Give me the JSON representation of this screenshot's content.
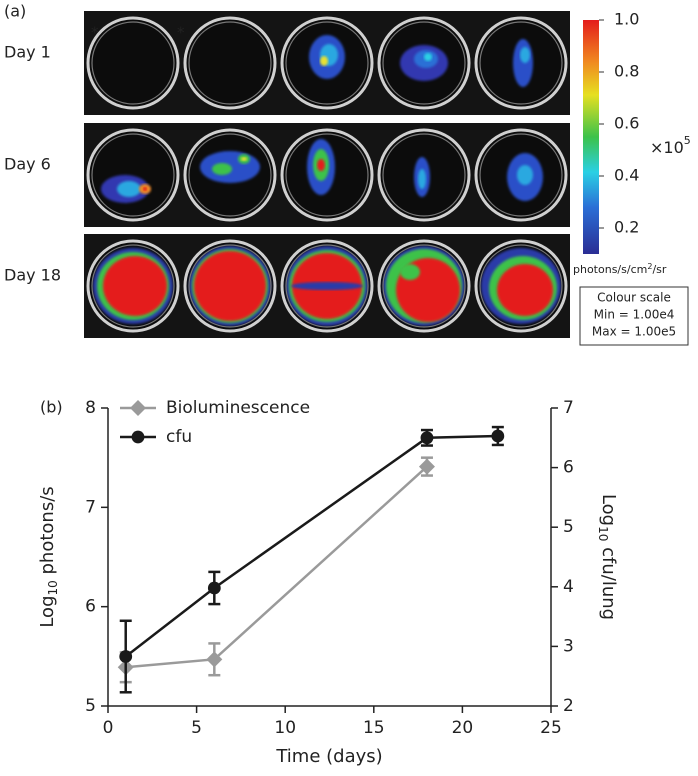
{
  "panel_a": {
    "label": "(a)",
    "rows": [
      "Day 1",
      "Day 6",
      "Day 18"
    ],
    "asterisks": [
      "*",
      "*"
    ],
    "colorbar": {
      "lim": [
        0.1,
        1.0
      ],
      "ticks": [
        {
          "value": 1,
          "label": "1.0"
        },
        0.8,
        0.6,
        0.4,
        0.2
      ],
      "multiplier": "×10",
      "exponent": "5",
      "unit": [
        "photons/s/cm",
        "2",
        "/sr"
      ],
      "scale_box": [
        "Colour scale",
        "Min = 1.00e4",
        "Max = 1.00e5"
      ]
    }
  },
  "chart_data": {
    "type": "line",
    "label": "(b)",
    "x_label": "Time (days)",
    "y_label": [
      "Log",
      "10",
      " photons/s"
    ],
    "y2_label": [
      "Log",
      "10",
      " cfu/lung"
    ],
    "xlim": [
      0,
      25
    ],
    "xticks": [
      0,
      5,
      10,
      15,
      20,
      25
    ],
    "ylim": [
      5,
      8
    ],
    "yticks": [
      5,
      6,
      7,
      8
    ],
    "y2lim": [
      2,
      7
    ],
    "y2ticks": [
      2,
      3,
      4,
      5,
      6,
      7
    ],
    "legend": "upper left",
    "series": [
      {
        "name": "Bioluminescence",
        "color": "#9a9a9a",
        "marker": "diamond",
        "x": [
          1,
          6,
          18
        ],
        "values": [
          5.39,
          5.47,
          7.41
        ],
        "errors": [
          0.15,
          0.16,
          0.09
        ]
      },
      {
        "name": "cfu",
        "color": "#1a1a1a",
        "marker": "circle",
        "axis": "y2",
        "x": [
          1,
          6,
          18,
          22
        ],
        "values": [
          2.83,
          3.98,
          6.5,
          6.53
        ],
        "errors": [
          0.6,
          0.27,
          0.13,
          0.15
        ]
      }
    ]
  }
}
